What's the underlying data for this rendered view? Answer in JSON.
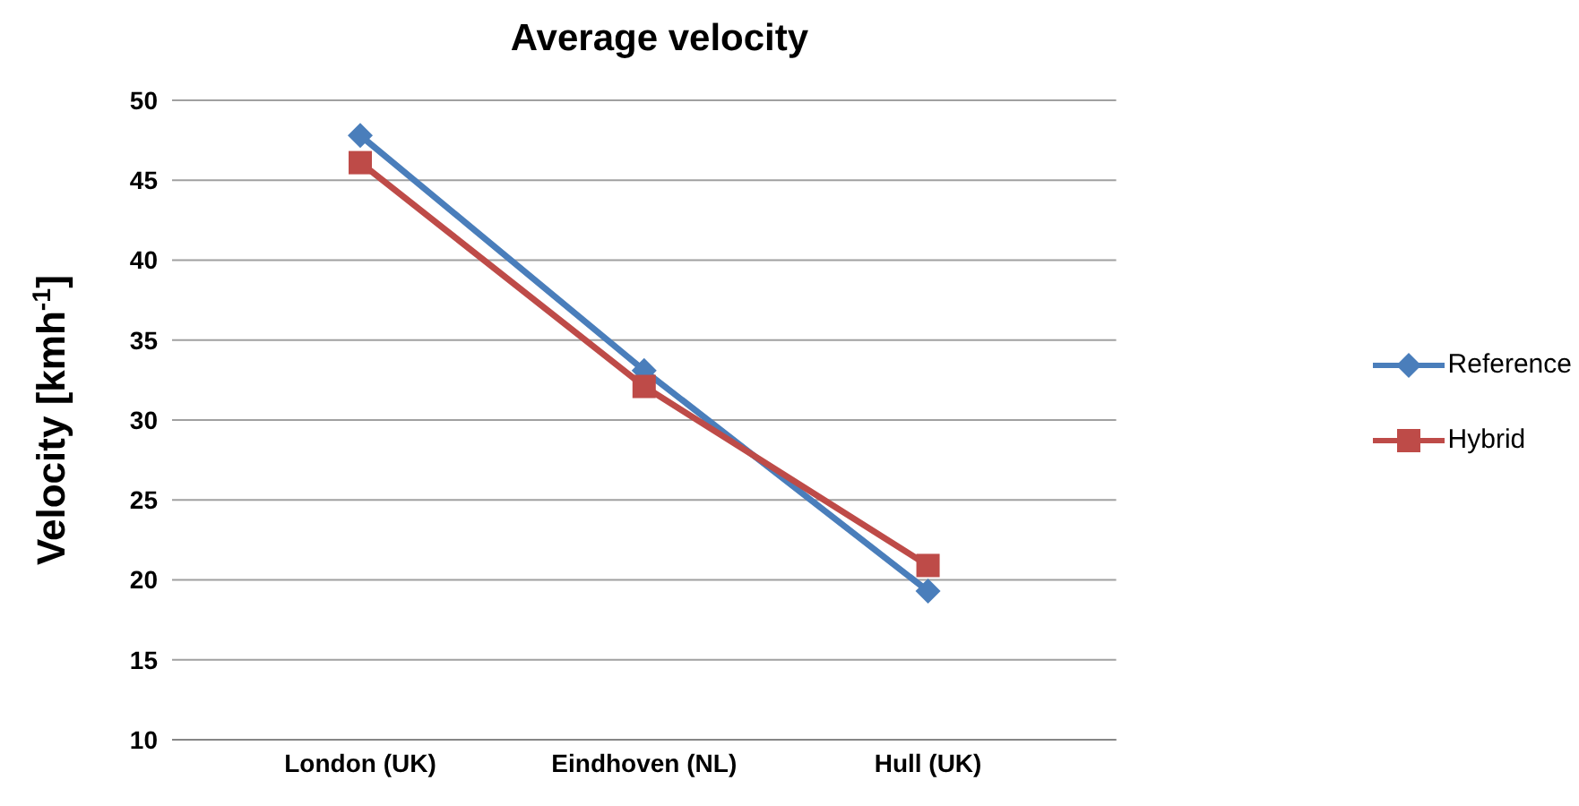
{
  "chart_data": {
    "type": "line",
    "title": "Average velocity",
    "ylabel": "Velocity [kmh$^{-1}$]",
    "categories": [
      "London (UK)",
      "Eindhoven (NL)",
      "Hull (UK)"
    ],
    "series": [
      {
        "name": "Reference",
        "color": "#4a7ebb",
        "values": [
          47.8,
          33.1,
          19.3
        ],
        "marker": "diamond"
      },
      {
        "name": "Hybrid",
        "color": "#be4b48",
        "values": [
          46.1,
          32.1,
          20.9
        ],
        "marker": "square"
      }
    ],
    "ylim": [
      10,
      50
    ],
    "yticks": [
      10,
      15,
      20,
      25,
      30,
      35,
      40,
      45,
      50
    ],
    "grid": "y",
    "legend": "right",
    "line_style": "solid"
  }
}
